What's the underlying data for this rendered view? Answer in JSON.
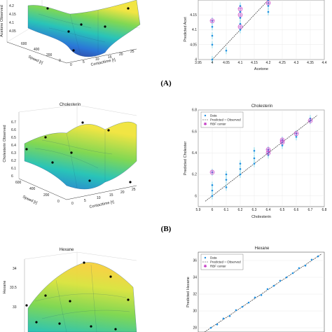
{
  "figure": {
    "panel_labels": [
      "(A)",
      "(B)"
    ],
    "legend_entries": [
      "Data",
      "Predicted = Observed",
      "RBF center"
    ]
  },
  "chart_data": [
    {
      "type": "surface3d",
      "panel": "A",
      "zlabel": "Acetone Observed",
      "xlabel": "Speed [r]",
      "ylabel": "Contacttime [r]",
      "ztick_labels": [
        "4.2",
        "4.15",
        "4.1",
        "4.05"
      ],
      "xtick_labels": [
        "600",
        "400",
        "200",
        "0"
      ],
      "ytick_labels": [
        "0",
        "5",
        "10",
        "15",
        "20",
        "25"
      ],
      "colors": [
        "#2b1d7a",
        "#1f6fd6",
        "#1ec1b5",
        "#7bd64a",
        "#f1e43a"
      ]
    },
    {
      "type": "scatter",
      "panel": "A",
      "title": "",
      "xlabel": "Acetone",
      "ylabel": "Predicted Acet",
      "xlim": [
        3.95,
        4.4
      ],
      "ylim": [
        4.0,
        4.2
      ],
      "xtick_labels": [
        "3.95",
        "4",
        "4.05",
        "4.1",
        "4.15",
        "4.2",
        "4.25",
        "4.3",
        "4.35",
        "4.4"
      ],
      "ytick_labels": [
        "4",
        "4.05",
        "4.1",
        "4.15"
      ],
      "data_points": [
        [
          4.0,
          4.0
        ],
        [
          4.0,
          4.05
        ],
        [
          4.0,
          4.08
        ],
        [
          4.0,
          4.11
        ],
        [
          4.0,
          4.13
        ],
        [
          4.05,
          4.03
        ],
        [
          4.1,
          4.1
        ],
        [
          4.1,
          4.12
        ],
        [
          4.1,
          4.14
        ],
        [
          4.1,
          4.16
        ],
        [
          4.1,
          4.18
        ],
        [
          4.2,
          4.16
        ],
        [
          4.2,
          4.18
        ],
        [
          4.2,
          4.19
        ],
        [
          4.2,
          4.2
        ]
      ],
      "rbf_centers": [
        [
          4.0,
          4.13
        ],
        [
          4.1,
          4.11
        ],
        [
          4.1,
          4.15
        ],
        [
          4.1,
          4.17
        ],
        [
          4.2,
          4.19
        ]
      ],
      "fit_line": [
        [
          4.0,
          4.0
        ],
        [
          4.2,
          4.2
        ]
      ]
    },
    {
      "type": "surface3d",
      "panel": "B",
      "title": "Cholesterin",
      "zlabel": "Cholesterin Observed",
      "xlabel": "Speed [r]",
      "ylabel": "Contacttime [r]",
      "ztick_labels": [
        "6.7",
        "6.6",
        "6.5",
        "6.4",
        "6.3",
        "6.2",
        "6.1",
        "6"
      ],
      "xtick_labels": [
        "600",
        "400",
        "200",
        "0"
      ],
      "ytick_labels": [
        "0",
        "5",
        "10",
        "15",
        "20",
        "25"
      ],
      "colors": [
        "#2b1d7a",
        "#1f6fd6",
        "#1ec1b5",
        "#7bd64a",
        "#f1e43a"
      ]
    },
    {
      "type": "scatter",
      "panel": "B",
      "title": "Cholesterin",
      "xlabel": "Cholesterin",
      "ylabel": "Predicted Cholester",
      "xlim": [
        5.9,
        6.8
      ],
      "ylim": [
        5.9,
        6.8
      ],
      "xtick_labels": [
        "5.9",
        "6",
        "6.1",
        "6.2",
        "6.3",
        "6.4",
        "6.5",
        "6.6",
        "6.7",
        "6.8"
      ],
      "ytick_labels": [
        "6",
        "6.2",
        "6.4",
        "6.6",
        "6.8"
      ],
      "data_points": [
        [
          6.0,
          6.0
        ],
        [
          6.0,
          6.05
        ],
        [
          6.0,
          6.1
        ],
        [
          6.0,
          6.22
        ],
        [
          6.1,
          6.08
        ],
        [
          6.1,
          6.15
        ],
        [
          6.1,
          6.2
        ],
        [
          6.2,
          6.2
        ],
        [
          6.2,
          6.25
        ],
        [
          6.2,
          6.3
        ],
        [
          6.3,
          6.3
        ],
        [
          6.3,
          6.35
        ],
        [
          6.3,
          6.42
        ],
        [
          6.4,
          6.38
        ],
        [
          6.4,
          6.4
        ],
        [
          6.4,
          6.43
        ],
        [
          6.5,
          6.47
        ],
        [
          6.5,
          6.5
        ],
        [
          6.5,
          6.52
        ],
        [
          6.6,
          6.55
        ],
        [
          6.6,
          6.58
        ],
        [
          6.7,
          6.7
        ],
        [
          6.7,
          6.72
        ]
      ],
      "rbf_centers": [
        [
          6.0,
          6.22
        ],
        [
          6.4,
          6.4
        ],
        [
          6.4,
          6.43
        ],
        [
          6.5,
          6.5
        ],
        [
          6.5,
          6.52
        ],
        [
          6.6,
          6.58
        ],
        [
          6.7,
          6.7
        ]
      ],
      "fit_line": [
        [
          5.95,
          5.95
        ],
        [
          6.75,
          6.75
        ]
      ]
    },
    {
      "type": "surface3d",
      "panel": "C",
      "title": "Hexane",
      "zlabel": "Hexane",
      "ztick_labels": [
        "34",
        "33.5",
        "33"
      ],
      "colors": [
        "#2b1d7a",
        "#1f6fd6",
        "#1ec1b5",
        "#7bd64a",
        "#f1e43a"
      ]
    },
    {
      "type": "scatter",
      "panel": "C",
      "title": "Hexane",
      "ylabel": "Predicted Hexane",
      "xlim": [
        27,
        37
      ],
      "ylim": [
        27.5,
        37
      ],
      "ytick_labels": [
        "36",
        "34",
        "32",
        "30",
        "28"
      ],
      "data_points": [
        [
          28.0,
          28.0
        ],
        [
          28.5,
          28.4
        ],
        [
          29.0,
          29.1
        ],
        [
          29.5,
          29.4
        ],
        [
          30.0,
          30.1
        ],
        [
          30.5,
          30.5
        ],
        [
          31.0,
          31.0
        ],
        [
          31.5,
          31.6
        ],
        [
          32.0,
          31.9
        ],
        [
          32.5,
          32.6
        ],
        [
          33.0,
          33.0
        ],
        [
          33.5,
          33.6
        ],
        [
          34.0,
          34.0
        ],
        [
          34.5,
          34.5
        ],
        [
          35.0,
          35.1
        ],
        [
          35.5,
          35.4
        ],
        [
          36.0,
          36.1
        ],
        [
          36.5,
          36.5
        ]
      ],
      "fit_line": [
        [
          27.5,
          27.5
        ],
        [
          36.8,
          36.8
        ]
      ]
    }
  ]
}
